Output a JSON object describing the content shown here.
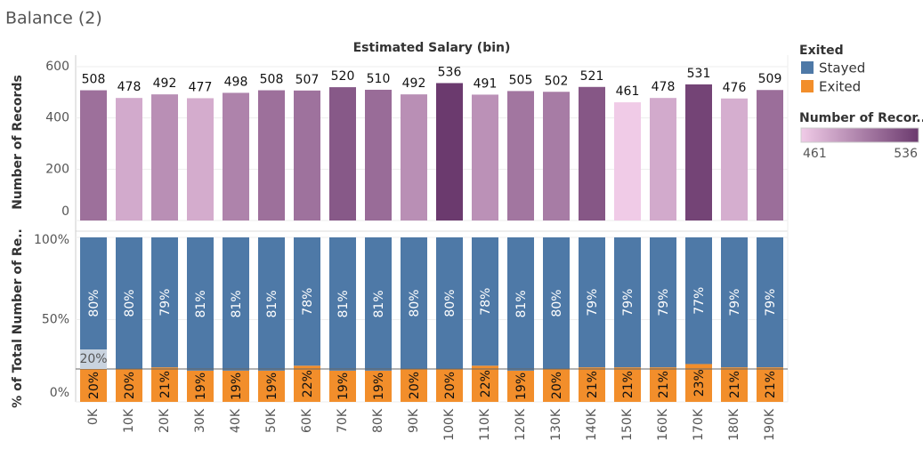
{
  "title": "Balance (2)",
  "chart_data": [
    {
      "type": "bar",
      "title": "Estimated Salary (bin)",
      "y_label": "Number of Records",
      "values": [
        508,
        478,
        492,
        477,
        498,
        508,
        507,
        520,
        510,
        492,
        536,
        491,
        505,
        502,
        521,
        461,
        478,
        531,
        476,
        509
      ],
      "ylim": [
        0,
        600
      ],
      "yticks": [
        0,
        200,
        400,
        600
      ],
      "color_scale": {
        "title": "Number of Recor..",
        "min": 461,
        "max": 536,
        "colors": [
          "#f0cbe7",
          "#6b3a6e"
        ]
      }
    },
    {
      "type": "stacked_bar",
      "y_label": "% of Total Number of Re..",
      "categories": [
        "0K",
        "10K",
        "20K",
        "30K",
        "40K",
        "50K",
        "60K",
        "70K",
        "80K",
        "90K",
        "100K",
        "110K",
        "120K",
        "130K",
        "140K",
        "150K",
        "160K",
        "170K",
        "180K",
        "190K"
      ],
      "legend_title": "Exited",
      "series": [
        {
          "name": "Stayed",
          "color": "#4e79a7",
          "values": [
            80,
            80,
            79,
            81,
            81,
            81,
            78,
            81,
            81,
            80,
            80,
            78,
            81,
            80,
            79,
            79,
            79,
            77,
            79,
            79
          ],
          "value_labels": [
            "80%",
            "80%",
            "79%",
            "81%",
            "81%",
            "81%",
            "78%",
            "81%",
            "81%",
            "80%",
            "80%",
            "78%",
            "81%",
            "80%",
            "79%",
            "79%",
            "79%",
            "77%",
            "79%",
            "79%"
          ]
        },
        {
          "name": "Exited",
          "color": "#f28e2b",
          "values": [
            20,
            20,
            21,
            19,
            19,
            19,
            22,
            19,
            19,
            20,
            20,
            22,
            19,
            20,
            21,
            21,
            21,
            23,
            21,
            21
          ],
          "value_labels": [
            "20%",
            "20%",
            "21%",
            "19%",
            "19%",
            "19%",
            "22%",
            "19%",
            "19%",
            "20%",
            "20%",
            "22%",
            "19%",
            "20%",
            "21%",
            "21%",
            "21%",
            "23%",
            "21%",
            "21%"
          ]
        }
      ],
      "annotation": "20%",
      "ylim": [
        0,
        100
      ],
      "yticks": [
        {
          "value": 0,
          "label": "0%"
        },
        {
          "value": 50,
          "label": "50%"
        },
        {
          "value": 100,
          "label": "100%"
        }
      ]
    }
  ]
}
